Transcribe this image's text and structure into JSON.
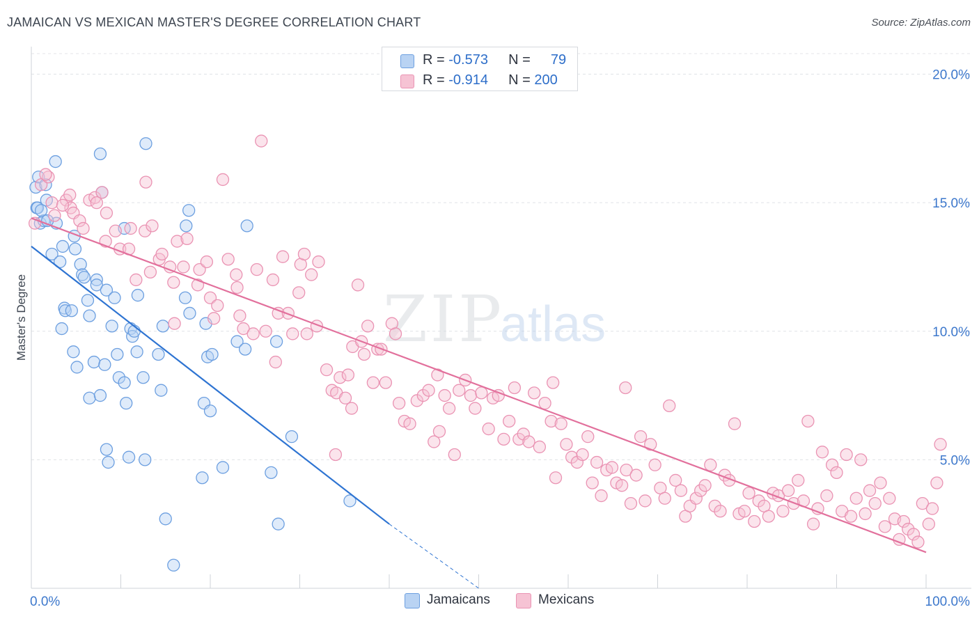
{
  "title": "JAMAICAN VS MEXICAN MASTER'S DEGREE CORRELATION CHART",
  "source": "Source: ZipAtlas.com",
  "watermark": {
    "zip": "ZIP",
    "atlas": "atlas"
  },
  "legend": {
    "rows": [
      {
        "r_label": "R =",
        "r_value": "-0.573",
        "n_label": "N =",
        "n_value": "79"
      },
      {
        "r_label": "R =",
        "r_value": "-0.914",
        "n_label": "N =",
        "n_value": "200"
      }
    ]
  },
  "colors": {
    "jamaicans_fill": "#b9d3f3",
    "jamaicans_stroke": "#6c9fe0",
    "jamaicans_line": "#2e74d2",
    "mexicans_fill": "#f6c3d4",
    "mexicans_stroke": "#ea93b3",
    "mexicans_line": "#e2709c",
    "axis_label": "#3d78cc"
  },
  "chart_data": {
    "type": "scatter",
    "title": "JAMAICAN VS MEXICAN MASTER'S DEGREE CORRELATION CHART",
    "xlabel": "",
    "ylabel": "Master's Degree",
    "xlim": [
      0,
      100
    ],
    "ylim": [
      0,
      20.8
    ],
    "x_tick_labels": [
      "0.0%",
      "100.0%"
    ],
    "y_ticks": [
      5,
      10,
      15,
      20
    ],
    "y_tick_labels": [
      "5.0%",
      "10.0%",
      "15.0%",
      "20.0%"
    ],
    "grid": true,
    "legend_position": "top-center",
    "series": [
      {
        "name": "Jamaicans",
        "r": -0.573,
        "n": 79,
        "trend": {
          "x": [
            0,
            40
          ],
          "y": [
            13.3,
            2.5
          ],
          "dashed_to": [
            50,
            0
          ]
        },
        "points": [
          [
            0.5,
            15.6
          ],
          [
            0.8,
            16.0
          ],
          [
            0.6,
            14.8
          ],
          [
            1.0,
            14.2
          ],
          [
            1.6,
            15.7
          ],
          [
            1.7,
            15.1
          ],
          [
            2.7,
            16.6
          ],
          [
            2.8,
            14.2
          ],
          [
            1.4,
            14.3
          ],
          [
            2.3,
            13.0
          ],
          [
            3.5,
            13.3
          ],
          [
            3.2,
            12.7
          ],
          [
            4.8,
            13.7
          ],
          [
            4.9,
            13.2
          ],
          [
            5.5,
            12.6
          ],
          [
            5.7,
            12.2
          ],
          [
            5.9,
            12.1
          ],
          [
            7.3,
            12.0
          ],
          [
            7.3,
            11.8
          ],
          [
            8.4,
            11.6
          ],
          [
            3.7,
            10.9
          ],
          [
            3.8,
            10.8
          ],
          [
            4.5,
            10.8
          ],
          [
            6.3,
            11.2
          ],
          [
            6.5,
            10.6
          ],
          [
            9.3,
            11.3
          ],
          [
            11.9,
            11.4
          ],
          [
            3.4,
            10.1
          ],
          [
            4.7,
            9.2
          ],
          [
            9.0,
            10.2
          ],
          [
            11.1,
            10.1
          ],
          [
            11.3,
            9.8
          ],
          [
            11.5,
            10.0
          ],
          [
            7.7,
            16.9
          ],
          [
            7.9,
            15.4
          ],
          [
            10.4,
            14.0
          ],
          [
            12.8,
            17.3
          ],
          [
            17.6,
            14.7
          ],
          [
            17.3,
            14.1
          ],
          [
            24.1,
            14.1
          ],
          [
            5.1,
            8.6
          ],
          [
            7.0,
            8.8
          ],
          [
            8.2,
            8.7
          ],
          [
            9.6,
            9.1
          ],
          [
            11.8,
            9.2
          ],
          [
            14.2,
            9.1
          ],
          [
            14.7,
            10.2
          ],
          [
            17.7,
            10.7
          ],
          [
            17.2,
            11.3
          ],
          [
            19.5,
            10.3
          ],
          [
            19.7,
            9.0
          ],
          [
            20.2,
            9.1
          ],
          [
            23.0,
            9.6
          ],
          [
            23.9,
            9.3
          ],
          [
            27.4,
            9.6
          ],
          [
            9.8,
            8.2
          ],
          [
            10.4,
            8.0
          ],
          [
            12.5,
            8.2
          ],
          [
            14.5,
            7.7
          ],
          [
            6.5,
            7.4
          ],
          [
            7.7,
            7.5
          ],
          [
            10.6,
            7.2
          ],
          [
            19.3,
            7.2
          ],
          [
            20.0,
            6.9
          ],
          [
            8.4,
            5.4
          ],
          [
            8.6,
            4.9
          ],
          [
            10.9,
            5.1
          ],
          [
            12.7,
            5.0
          ],
          [
            21.4,
            4.7
          ],
          [
            19.1,
            4.3
          ],
          [
            26.8,
            4.5
          ],
          [
            29.1,
            5.9
          ],
          [
            35.6,
            3.4
          ],
          [
            15.0,
            2.7
          ],
          [
            27.6,
            2.5
          ],
          [
            15.9,
            0.9
          ],
          [
            0.7,
            14.8
          ],
          [
            1.8,
            14.3
          ],
          [
            1.1,
            14.7
          ]
        ]
      },
      {
        "name": "Mexicans",
        "r": -0.914,
        "n": 200,
        "trend": {
          "x": [
            0,
            100
          ],
          "y": [
            14.4,
            1.4
          ]
        },
        "points": [
          [
            0.4,
            14.2
          ],
          [
            1.1,
            15.7
          ],
          [
            1.9,
            16.0
          ],
          [
            2.3,
            15.0
          ],
          [
            2.6,
            14.5
          ],
          [
            1.6,
            16.1
          ],
          [
            3.9,
            15.1
          ],
          [
            4.3,
            15.3
          ],
          [
            4.4,
            14.8
          ],
          [
            4.7,
            14.6
          ],
          [
            3.5,
            14.9
          ],
          [
            5.4,
            14.3
          ],
          [
            5.8,
            14.0
          ],
          [
            6.5,
            15.1
          ],
          [
            7.1,
            15.2
          ],
          [
            7.3,
            15.0
          ],
          [
            7.9,
            15.4
          ],
          [
            8.4,
            14.6
          ],
          [
            8.3,
            13.5
          ],
          [
            9.4,
            13.9
          ],
          [
            9.9,
            13.2
          ],
          [
            10.9,
            13.2
          ],
          [
            11.1,
            14.0
          ],
          [
            12.7,
            13.9
          ],
          [
            13.5,
            14.1
          ],
          [
            12.8,
            15.8
          ],
          [
            14.3,
            12.8
          ],
          [
            14.6,
            13.0
          ],
          [
            13.3,
            12.3
          ],
          [
            11.7,
            12.0
          ],
          [
            15.5,
            12.5
          ],
          [
            15.9,
            11.9
          ],
          [
            16.3,
            13.5
          ],
          [
            17.4,
            13.6
          ],
          [
            17.0,
            12.5
          ],
          [
            18.8,
            12.4
          ],
          [
            18.6,
            11.8
          ],
          [
            19.6,
            12.7
          ],
          [
            20.0,
            11.3
          ],
          [
            20.4,
            10.5
          ],
          [
            21.4,
            15.9
          ],
          [
            22.0,
            12.8
          ],
          [
            22.9,
            12.2
          ],
          [
            23.0,
            11.7
          ],
          [
            23.3,
            10.6
          ],
          [
            23.7,
            10.1
          ],
          [
            24.8,
            9.9
          ],
          [
            25.2,
            12.4
          ],
          [
            25.7,
            17.4
          ],
          [
            26.2,
            10.0
          ],
          [
            27.3,
            8.8
          ],
          [
            27.6,
            10.7
          ],
          [
            28.1,
            12.9
          ],
          [
            28.7,
            10.7
          ],
          [
            29.2,
            9.9
          ],
          [
            29.9,
            11.5
          ],
          [
            30.1,
            12.6
          ],
          [
            30.8,
            9.9
          ],
          [
            31.3,
            12.2
          ],
          [
            31.9,
            10.2
          ],
          [
            32.1,
            12.7
          ],
          [
            33.0,
            8.5
          ],
          [
            33.6,
            7.7
          ],
          [
            34.1,
            7.6
          ],
          [
            34.5,
            8.2
          ],
          [
            35.1,
            7.4
          ],
          [
            35.4,
            8.3
          ],
          [
            35.9,
            9.4
          ],
          [
            36.5,
            11.8
          ],
          [
            37.2,
            9.1
          ],
          [
            37.6,
            10.2
          ],
          [
            38.2,
            8.0
          ],
          [
            38.7,
            9.3
          ],
          [
            39.1,
            9.3
          ],
          [
            39.6,
            8.0
          ],
          [
            40.3,
            10.3
          ],
          [
            41.1,
            7.2
          ],
          [
            41.7,
            6.5
          ],
          [
            42.3,
            6.4
          ],
          [
            43.1,
            7.3
          ],
          [
            43.8,
            7.5
          ],
          [
            44.4,
            7.7
          ],
          [
            45.0,
            5.7
          ],
          [
            45.6,
            6.1
          ],
          [
            46.2,
            7.5
          ],
          [
            46.7,
            7.0
          ],
          [
            47.3,
            5.2
          ],
          [
            47.8,
            7.7
          ],
          [
            48.5,
            8.1
          ],
          [
            49.1,
            7.5
          ],
          [
            49.6,
            7.0
          ],
          [
            50.3,
            7.6
          ],
          [
            51.1,
            6.2
          ],
          [
            51.6,
            7.4
          ],
          [
            52.2,
            7.5
          ],
          [
            52.8,
            5.8
          ],
          [
            53.4,
            6.5
          ],
          [
            54.0,
            7.8
          ],
          [
            54.5,
            5.8
          ],
          [
            55.0,
            6.0
          ],
          [
            55.6,
            5.7
          ],
          [
            56.2,
            7.6
          ],
          [
            56.8,
            5.5
          ],
          [
            57.4,
            7.2
          ],
          [
            58.1,
            6.5
          ],
          [
            58.6,
            4.3
          ],
          [
            59.2,
            6.4
          ],
          [
            59.8,
            5.6
          ],
          [
            60.4,
            5.1
          ],
          [
            61.0,
            4.9
          ],
          [
            61.6,
            5.2
          ],
          [
            62.2,
            5.9
          ],
          [
            62.7,
            4.1
          ],
          [
            63.2,
            4.9
          ],
          [
            63.7,
            3.6
          ],
          [
            64.3,
            4.6
          ],
          [
            64.9,
            4.7
          ],
          [
            65.4,
            4.1
          ],
          [
            66.0,
            4.0
          ],
          [
            66.5,
            4.6
          ],
          [
            67.0,
            3.3
          ],
          [
            67.6,
            4.4
          ],
          [
            68.1,
            5.9
          ],
          [
            68.6,
            3.4
          ],
          [
            69.2,
            5.6
          ],
          [
            69.7,
            4.8
          ],
          [
            70.3,
            3.9
          ],
          [
            70.8,
            3.5
          ],
          [
            71.3,
            7.1
          ],
          [
            72.0,
            4.2
          ],
          [
            72.6,
            3.8
          ],
          [
            73.1,
            2.8
          ],
          [
            73.6,
            3.2
          ],
          [
            74.3,
            3.5
          ],
          [
            74.8,
            3.8
          ],
          [
            75.3,
            4.0
          ],
          [
            75.9,
            4.8
          ],
          [
            76.4,
            3.2
          ],
          [
            77.0,
            3.0
          ],
          [
            77.5,
            4.4
          ],
          [
            78.0,
            4.2
          ],
          [
            78.6,
            6.4
          ],
          [
            79.1,
            2.9
          ],
          [
            79.7,
            3.0
          ],
          [
            80.2,
            3.7
          ],
          [
            80.8,
            2.6
          ],
          [
            81.3,
            3.4
          ],
          [
            81.9,
            3.2
          ],
          [
            82.4,
            2.8
          ],
          [
            82.9,
            3.7
          ],
          [
            83.5,
            3.6
          ],
          [
            84.0,
            3.0
          ],
          [
            84.6,
            3.8
          ],
          [
            85.2,
            3.3
          ],
          [
            85.7,
            4.2
          ],
          [
            86.3,
            3.4
          ],
          [
            86.8,
            6.5
          ],
          [
            87.4,
            2.5
          ],
          [
            87.9,
            3.1
          ],
          [
            88.4,
            5.3
          ],
          [
            88.9,
            3.6
          ],
          [
            89.5,
            4.8
          ],
          [
            90.0,
            4.5
          ],
          [
            90.6,
            3.0
          ],
          [
            91.1,
            5.2
          ],
          [
            91.6,
            2.8
          ],
          [
            92.2,
            3.5
          ],
          [
            92.7,
            5.0
          ],
          [
            93.2,
            2.9
          ],
          [
            93.7,
            3.8
          ],
          [
            94.3,
            3.3
          ],
          [
            94.9,
            4.1
          ],
          [
            95.4,
            2.4
          ],
          [
            95.9,
            3.5
          ],
          [
            96.5,
            2.7
          ],
          [
            97.0,
            1.9
          ],
          [
            97.5,
            2.6
          ],
          [
            98.0,
            2.3
          ],
          [
            98.6,
            2.1
          ],
          [
            99.1,
            1.8
          ],
          [
            99.6,
            3.3
          ],
          [
            100.3,
            2.5
          ],
          [
            100.7,
            3.1
          ],
          [
            101.2,
            4.1
          ],
          [
            101.6,
            5.6
          ],
          [
            30.5,
            13.0
          ],
          [
            20.8,
            11.0
          ],
          [
            40.7,
            9.9
          ],
          [
            66.4,
            7.8
          ],
          [
            58.3,
            8.0
          ],
          [
            35.8,
            7.0
          ],
          [
            27.0,
            12.0
          ],
          [
            16.0,
            10.3
          ],
          [
            36.9,
            9.6
          ],
          [
            45.4,
            8.3
          ],
          [
            34.0,
            5.2
          ]
        ]
      }
    ]
  },
  "bottom_legend": [
    {
      "label": "Jamaicans"
    },
    {
      "label": "Mexicans"
    }
  ]
}
